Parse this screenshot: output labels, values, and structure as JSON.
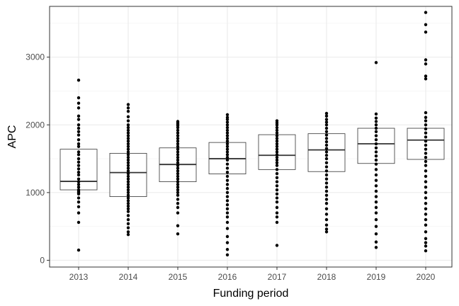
{
  "chart_data": {
    "type": "box",
    "xlabel": "Funding period",
    "ylabel": "APC",
    "categories": [
      "2013",
      "2014",
      "2015",
      "2016",
      "2017",
      "2018",
      "2019",
      "2020"
    ],
    "ylim": [
      -100,
      3750
    ],
    "yticks": [
      0,
      1000,
      2000,
      3000
    ],
    "grid": true,
    "boxes": [
      {
        "category": "2013",
        "q1": 1040,
        "median": 1165,
        "q3": 1640
      },
      {
        "category": "2014",
        "q1": 940,
        "median": 1295,
        "q3": 1580
      },
      {
        "category": "2015",
        "q1": 1160,
        "median": 1415,
        "q3": 1660
      },
      {
        "category": "2016",
        "q1": 1275,
        "median": 1500,
        "q3": 1740
      },
      {
        "category": "2017",
        "q1": 1340,
        "median": 1550,
        "q3": 1855
      },
      {
        "category": "2018",
        "q1": 1310,
        "median": 1630,
        "q3": 1870
      },
      {
        "category": "2019",
        "q1": 1430,
        "median": 1720,
        "q3": 1950
      },
      {
        "category": "2020",
        "q1": 1490,
        "median": 1775,
        "q3": 1950
      }
    ],
    "points": {
      "2013": [
        150,
        560,
        700,
        790,
        860,
        920,
        980,
        1000,
        1020,
        1040,
        1080,
        1120,
        1160,
        1200,
        1260,
        1300,
        1350,
        1400,
        1450,
        1500,
        1560,
        1600,
        1680,
        1720,
        1780,
        1850,
        1900,
        1950,
        2000,
        2080,
        2130,
        2250,
        2320,
        2400,
        2660
      ],
      "2014": [
        380,
        420,
        480,
        540,
        600,
        660,
        720,
        760,
        800,
        840,
        880,
        920,
        960,
        1000,
        1040,
        1080,
        1120,
        1160,
        1200,
        1240,
        1280,
        1320,
        1360,
        1400,
        1440,
        1480,
        1520,
        1560,
        1600,
        1640,
        1680,
        1720,
        1760,
        1800,
        1840,
        1880,
        1920,
        1960,
        2000,
        2060,
        2120,
        2200,
        2250,
        2300
      ],
      "2015": [
        390,
        510,
        700,
        780,
        840,
        900,
        960,
        1000,
        1040,
        1080,
        1120,
        1160,
        1200,
        1240,
        1280,
        1320,
        1360,
        1400,
        1440,
        1480,
        1520,
        1560,
        1600,
        1640,
        1680,
        1720,
        1760,
        1800,
        1840,
        1880,
        1920,
        1960,
        1990,
        2010,
        2030,
        2050
      ],
      "2016": [
        80,
        160,
        260,
        350,
        470,
        560,
        640,
        700,
        760,
        820,
        880,
        940,
        1000,
        1060,
        1120,
        1180,
        1240,
        1300,
        1360,
        1420,
        1480,
        1520,
        1560,
        1600,
        1640,
        1680,
        1720,
        1760,
        1800,
        1840,
        1880,
        1920,
        1960,
        2000,
        2040,
        2080,
        2110,
        2150
      ],
      "2017": [
        220,
        560,
        640,
        700,
        780,
        860,
        920,
        980,
        1040,
        1100,
        1160,
        1220,
        1280,
        1340,
        1400,
        1440,
        1480,
        1520,
        1560,
        1600,
        1640,
        1680,
        1720,
        1760,
        1800,
        1840,
        1880,
        1920,
        1960,
        2000,
        2030,
        2060
      ],
      "2018": [
        420,
        460,
        520,
        600,
        680,
        760,
        840,
        900,
        960,
        1020,
        1080,
        1140,
        1200,
        1260,
        1320,
        1380,
        1440,
        1500,
        1550,
        1600,
        1650,
        1700,
        1750,
        1800,
        1850,
        1900,
        1950,
        2000,
        2040,
        2080,
        2130,
        2170
      ],
      "2019": [
        190,
        270,
        390,
        500,
        600,
        700,
        780,
        860,
        940,
        1020,
        1100,
        1180,
        1260,
        1340,
        1420,
        1480,
        1540,
        1600,
        1660,
        1720,
        1780,
        1840,
        1900,
        1950,
        2000,
        2050,
        2100,
        2160,
        2920
      ],
      "2020": [
        140,
        210,
        260,
        320,
        420,
        520,
        600,
        680,
        760,
        840,
        920,
        1000,
        1080,
        1160,
        1240,
        1320,
        1400,
        1460,
        1520,
        1580,
        1640,
        1700,
        1760,
        1820,
        1880,
        1940,
        2000,
        2060,
        2110,
        2180,
        2680,
        2720,
        2900,
        2960,
        3370,
        3480,
        3660
      ]
    }
  }
}
